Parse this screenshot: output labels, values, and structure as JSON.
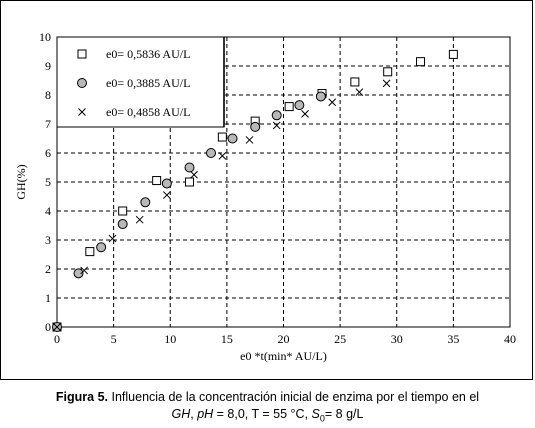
{
  "chart_data": {
    "type": "scatter",
    "xlabel": "e0 *t(min* AU/L)",
    "ylabel": "GH(%)",
    "xlim": [
      0,
      40
    ],
    "ylim": [
      0,
      10
    ],
    "xticks": [
      0,
      5,
      10,
      15,
      20,
      25,
      30,
      35,
      40
    ],
    "yticks": [
      0,
      1,
      2,
      3,
      4,
      5,
      6,
      7,
      8,
      9,
      10
    ],
    "grid": true,
    "legend_position": "top-left",
    "series": [
      {
        "name": "e0= 0,5836 AU/L",
        "marker": "square",
        "x": [
          0,
          2.9,
          5.8,
          8.8,
          11.7,
          14.6,
          17.5,
          20.5,
          23.4,
          26.3,
          29.2,
          32.1,
          35.0
        ],
        "y": [
          0,
          2.6,
          4.0,
          5.05,
          5.0,
          6.55,
          7.1,
          7.6,
          8.05,
          8.45,
          8.8,
          9.15,
          9.4
        ]
      },
      {
        "name": "e0= 0,3885 AU/L",
        "marker": "circle",
        "x": [
          0,
          1.9,
          3.9,
          5.8,
          7.8,
          9.7,
          11.7,
          13.6,
          15.5,
          17.5,
          19.4,
          21.4,
          23.3
        ],
        "y": [
          0,
          1.85,
          2.75,
          3.55,
          4.3,
          4.95,
          5.5,
          6.0,
          6.5,
          6.9,
          7.3,
          7.65,
          7.95
        ]
      },
      {
        "name": "e0= 0,4858 AU/L",
        "marker": "x",
        "x": [
          0,
          2.4,
          4.9,
          7.3,
          9.7,
          12.1,
          14.6,
          17.0,
          19.4,
          21.9,
          24.3,
          26.7,
          29.1
        ],
        "y": [
          0,
          1.95,
          3.05,
          3.7,
          4.55,
          5.25,
          5.9,
          6.45,
          6.95,
          7.35,
          7.75,
          8.1,
          8.4
        ]
      }
    ]
  },
  "caption": {
    "figure_label": "Figura 5.",
    "line1_text": " Influencia de la concentración inicial de enzima por el tiempo en el",
    "gh": "GH",
    "sep1": ", ",
    "ph": "pH",
    "ph_val": " = 8,0, T = 55 °C, ",
    "s": "S",
    "s_sub": "0",
    "s_val": "= 8 g/L"
  }
}
